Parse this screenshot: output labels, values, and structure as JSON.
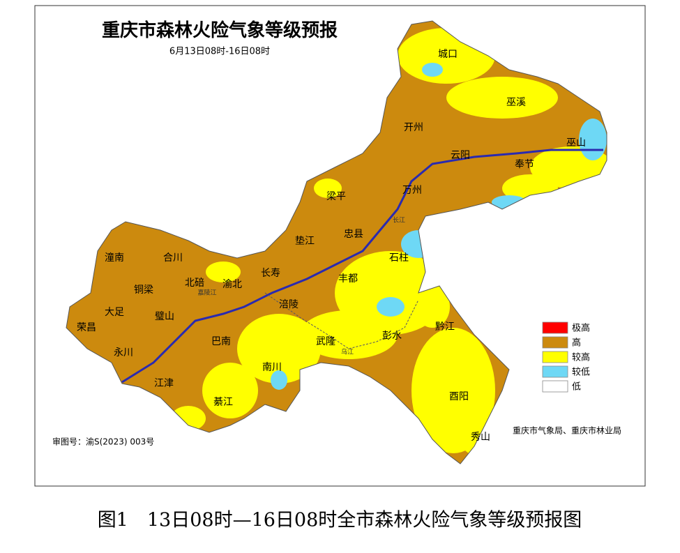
{
  "map": {
    "title": "重庆市森林火险气象等级预报",
    "subtitle": "6月13日08时-16日08时",
    "places": [
      "城口",
      "巫溪",
      "开州",
      "云阳",
      "巫山",
      "奉节",
      "梁平",
      "万州",
      "忠县",
      "垫江",
      "石柱",
      "长寿",
      "丰都",
      "涪陵",
      "潼南",
      "合川",
      "铜梁",
      "北碚",
      "渝北",
      "大足",
      "璧山",
      "荣昌",
      "永川",
      "巴南",
      "武隆",
      "彭水",
      "黔江",
      "南川",
      "江津",
      "綦江",
      "酉阳",
      "秀山"
    ],
    "rivers": [
      "长江",
      "乌江",
      "嘉陵江"
    ],
    "legend": [
      {
        "label": "极高",
        "color": "#ff0000"
      },
      {
        "label": "高",
        "color": "#cc8a0e"
      },
      {
        "label": "较高",
        "color": "#ffff00"
      },
      {
        "label": "较低",
        "color": "#6ed8f5"
      },
      {
        "label": "低",
        "color": "#ffffff"
      }
    ],
    "approval": "审图号：渝S(2023) 003号",
    "issuer": "重庆市气象局、重庆市林业局"
  },
  "caption": "图1　13日08时—16日08时全市森林火险气象等级预报图"
}
